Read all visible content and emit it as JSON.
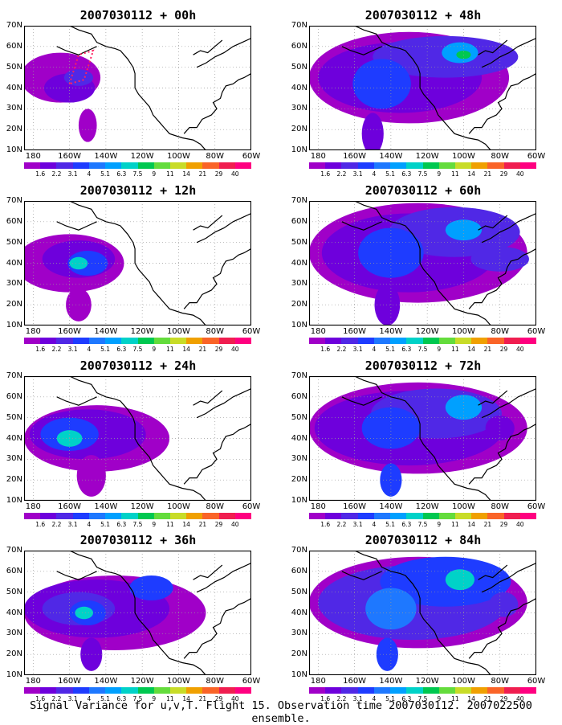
{
  "panels": [
    {
      "title": "2007030112 + 00h"
    },
    {
      "title": "2007030112 + 48h"
    },
    {
      "title": "2007030112 + 12h"
    },
    {
      "title": "2007030112 + 60h"
    },
    {
      "title": "2007030112 + 24h"
    },
    {
      "title": "2007030112 + 72h"
    },
    {
      "title": "2007030112 + 36h"
    },
    {
      "title": "2007030112 + 84h"
    }
  ],
  "axes": {
    "lat_labels": [
      "70N",
      "60N",
      "50N",
      "40N",
      "30N",
      "20N",
      "10N"
    ],
    "lon_labels": [
      "180",
      "160W",
      "140W",
      "120W",
      "100W",
      "80W",
      "60W"
    ]
  },
  "colorbar": {
    "levels": [
      "1.6",
      "2.2",
      "3.1",
      "4",
      "5.1",
      "6.3",
      "7.5",
      "9",
      "11",
      "14",
      "21",
      "29",
      "40"
    ],
    "colors": [
      "#a000c8",
      "#6e00dc",
      "#5028e6",
      "#1e3cff",
      "#1e78ff",
      "#00a0ff",
      "#00d2c8",
      "#00c850",
      "#64dc3c",
      "#c8dc28",
      "#f0a000",
      "#fa6428",
      "#f01e50",
      "#ff0080"
    ]
  },
  "caption": "Signal Variance for u,v,T. Flight 15. Observation time 2007030112. 2007022500 ensemble."
}
